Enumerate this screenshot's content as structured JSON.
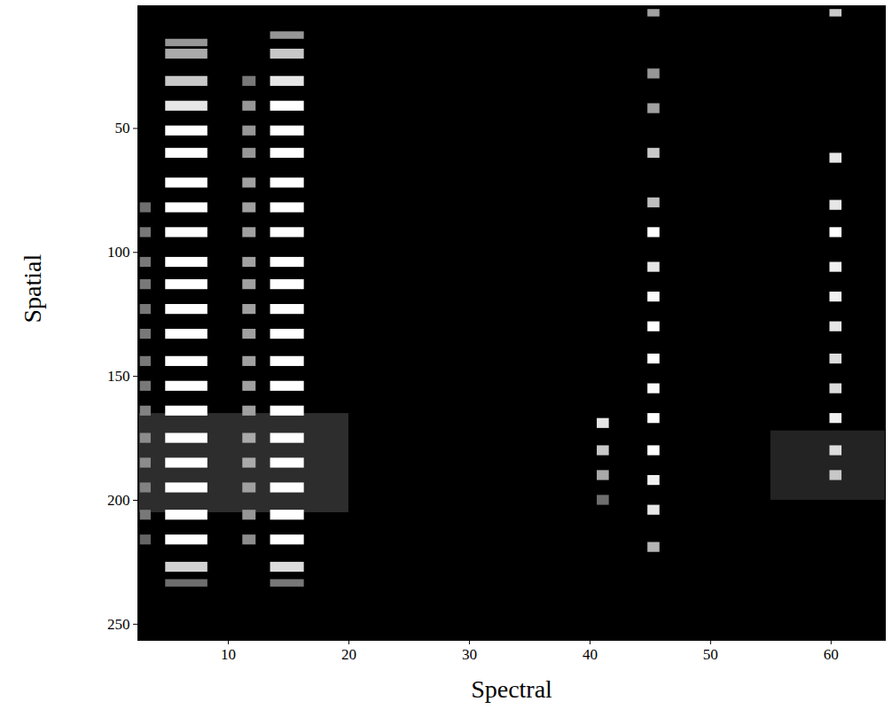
{
  "chart_data": {
    "type": "heatmap",
    "xlabel": "Spectral",
    "ylabel": "Spatial",
    "xlim": [
      2.5,
      64.5
    ],
    "ylim": [
      256.5,
      0.5
    ],
    "xticks": [
      10,
      20,
      30,
      40,
      50,
      60
    ],
    "yticks": [
      50,
      100,
      150,
      200,
      250
    ],
    "color_range": [
      0,
      255
    ],
    "bands": [
      {
        "x": [
          2.6,
          20
        ],
        "cells": [
          [
            165,
            205,
            45
          ]
        ]
      },
      {
        "x": [
          55,
          64.5
        ],
        "cells": [
          [
            172,
            200,
            35
          ]
        ]
      },
      {
        "x": [
          2.7,
          3.6
        ],
        "cells": [
          [
            80,
            84,
            110
          ],
          [
            90,
            94,
            120
          ],
          [
            102,
            106,
            120
          ],
          [
            111,
            115,
            120
          ],
          [
            121,
            125,
            120
          ],
          [
            131,
            135,
            120
          ],
          [
            142,
            146,
            120
          ],
          [
            152,
            156,
            120
          ],
          [
            162,
            166,
            130
          ],
          [
            173,
            177,
            140
          ],
          [
            183,
            187,
            140
          ],
          [
            193,
            197,
            130
          ],
          [
            204,
            208,
            120
          ],
          [
            214,
            218,
            100
          ]
        ]
      },
      {
        "x": [
          4.8,
          8.3
        ],
        "cells": [
          [
            14,
            17,
            150
          ],
          [
            18,
            22,
            170
          ],
          [
            29,
            33,
            200
          ],
          [
            39,
            43,
            230
          ],
          [
            49,
            53,
            255
          ],
          [
            58,
            62,
            255
          ],
          [
            70,
            74,
            255
          ],
          [
            80,
            84,
            255
          ],
          [
            90,
            94,
            255
          ],
          [
            102,
            106,
            255
          ],
          [
            111,
            115,
            255
          ],
          [
            121,
            125,
            255
          ],
          [
            131,
            135,
            255
          ],
          [
            142,
            146,
            255
          ],
          [
            152,
            156,
            255
          ],
          [
            162,
            166,
            255
          ],
          [
            173,
            177,
            255
          ],
          [
            183,
            187,
            255
          ],
          [
            193,
            197,
            255
          ],
          [
            204,
            208,
            255
          ],
          [
            214,
            218,
            255
          ],
          [
            225,
            229,
            210
          ],
          [
            232,
            235,
            110
          ]
        ]
      },
      {
        "x": [
          11.2,
          12.3
        ],
        "cells": [
          [
            29,
            33,
            120
          ],
          [
            39,
            43,
            150
          ],
          [
            49,
            53,
            150
          ],
          [
            58,
            62,
            150
          ],
          [
            70,
            74,
            160
          ],
          [
            80,
            84,
            160
          ],
          [
            90,
            94,
            160
          ],
          [
            102,
            106,
            160
          ],
          [
            111,
            115,
            160
          ],
          [
            121,
            125,
            160
          ],
          [
            131,
            135,
            160
          ],
          [
            142,
            146,
            160
          ],
          [
            152,
            156,
            160
          ],
          [
            162,
            166,
            160
          ],
          [
            173,
            177,
            170
          ],
          [
            183,
            187,
            170
          ],
          [
            193,
            197,
            160
          ],
          [
            204,
            208,
            150
          ],
          [
            214,
            218,
            140
          ]
        ]
      },
      {
        "x": [
          13.5,
          16.3
        ],
        "cells": [
          [
            11,
            14,
            150
          ],
          [
            18,
            22,
            200
          ],
          [
            29,
            33,
            230
          ],
          [
            39,
            43,
            255
          ],
          [
            49,
            53,
            255
          ],
          [
            58,
            62,
            255
          ],
          [
            70,
            74,
            255
          ],
          [
            80,
            84,
            255
          ],
          [
            90,
            94,
            255
          ],
          [
            102,
            106,
            255
          ],
          [
            111,
            115,
            255
          ],
          [
            121,
            125,
            255
          ],
          [
            131,
            135,
            255
          ],
          [
            142,
            146,
            255
          ],
          [
            152,
            156,
            255
          ],
          [
            162,
            166,
            255
          ],
          [
            173,
            177,
            255
          ],
          [
            183,
            187,
            255
          ],
          [
            193,
            197,
            255
          ],
          [
            204,
            208,
            255
          ],
          [
            214,
            218,
            255
          ],
          [
            225,
            229,
            220
          ],
          [
            232,
            235,
            120
          ]
        ]
      },
      {
        "x": [
          40.6,
          41.6
        ],
        "cells": [
          [
            167,
            171,
            230
          ],
          [
            178,
            182,
            200
          ],
          [
            188,
            192,
            170
          ],
          [
            198,
            202,
            110
          ]
        ]
      },
      {
        "x": [
          44.8,
          45.8
        ],
        "cells": [
          [
            2,
            5,
            160
          ],
          [
            26,
            30,
            150
          ],
          [
            40,
            44,
            160
          ],
          [
            58,
            62,
            200
          ],
          [
            78,
            82,
            190
          ],
          [
            90,
            94,
            255
          ],
          [
            104,
            108,
            230
          ],
          [
            116,
            120,
            250
          ],
          [
            128,
            132,
            255
          ],
          [
            141,
            145,
            255
          ],
          [
            153,
            157,
            250
          ],
          [
            165,
            169,
            255
          ],
          [
            178,
            182,
            255
          ],
          [
            190,
            194,
            240
          ],
          [
            202,
            206,
            230
          ],
          [
            217,
            221,
            180
          ]
        ]
      },
      {
        "x": [
          59.9,
          60.9
        ],
        "cells": [
          [
            2,
            5,
            200
          ],
          [
            60,
            64,
            230
          ],
          [
            79,
            83,
            230
          ],
          [
            90,
            94,
            255
          ],
          [
            104,
            108,
            240
          ],
          [
            116,
            120,
            240
          ],
          [
            128,
            132,
            230
          ],
          [
            141,
            145,
            220
          ],
          [
            153,
            157,
            220
          ],
          [
            165,
            169,
            240
          ],
          [
            178,
            182,
            220
          ],
          [
            188,
            192,
            200
          ]
        ]
      }
    ]
  }
}
